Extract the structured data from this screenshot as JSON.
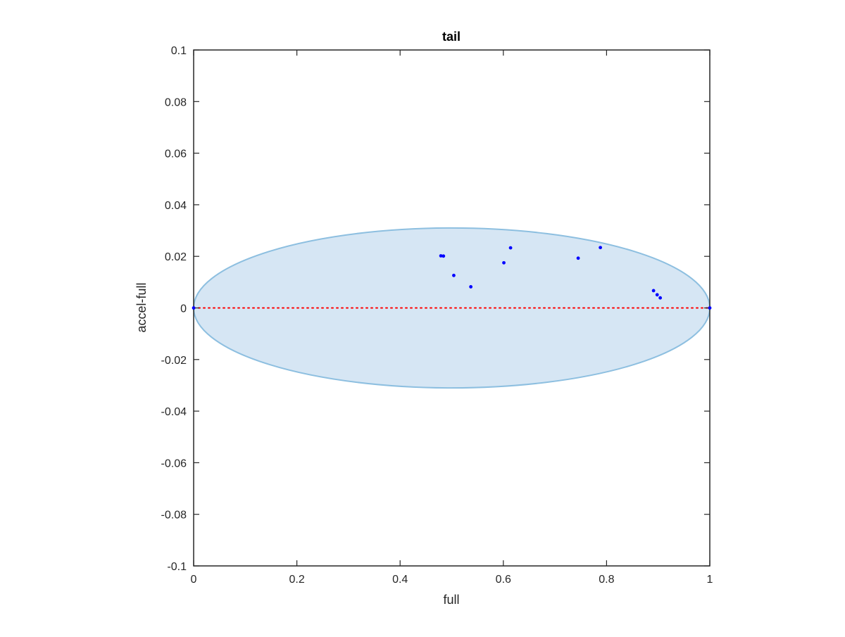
{
  "chart_data": {
    "type": "scatter",
    "title": "tail",
    "xlabel": "full",
    "ylabel": "accel-full",
    "xlim": [
      0,
      1
    ],
    "ylim": [
      -0.1,
      0.1
    ],
    "x_ticks": [
      0,
      0.2,
      0.4,
      0.6,
      0.8,
      1
    ],
    "x_tick_labels": [
      "0",
      "0.2",
      "0.4",
      "0.6",
      "0.8",
      "1"
    ],
    "y_ticks": [
      -0.1,
      -0.08,
      -0.06,
      -0.04,
      -0.02,
      0,
      0.02,
      0.04,
      0.06,
      0.08,
      0.1
    ],
    "y_tick_labels": [
      "-0.1",
      "-0.08",
      "-0.06",
      "-0.04",
      "-0.02",
      "0",
      "0.02",
      "0.04",
      "0.06",
      "0.08",
      "0.1"
    ],
    "grid": false,
    "box": true,
    "ellipse": {
      "center": [
        0.5,
        0
      ],
      "semi_axis_x": 0.5,
      "semi_axis_y": 0.031,
      "fill_color": "#d6e6f4",
      "edge_color": "#8dbfe0"
    },
    "reference_line": {
      "y": 0,
      "x_range": [
        0,
        1
      ],
      "style": "dotted",
      "color": "#ff0000"
    },
    "series": [
      {
        "color": "#0000ff",
        "marker": "dot",
        "points": [
          {
            "x": 0.0,
            "y": 0.0
          },
          {
            "x": 0.479,
            "y": 0.0202
          },
          {
            "x": 0.484,
            "y": 0.0201
          },
          {
            "x": 0.504,
            "y": 0.0126
          },
          {
            "x": 0.537,
            "y": 0.0082
          },
          {
            "x": 0.601,
            "y": 0.0175
          },
          {
            "x": 0.614,
            "y": 0.0233
          },
          {
            "x": 0.745,
            "y": 0.0193
          },
          {
            "x": 0.788,
            "y": 0.0234
          },
          {
            "x": 0.891,
            "y": 0.0067
          },
          {
            "x": 0.898,
            "y": 0.0051
          },
          {
            "x": 0.904,
            "y": 0.0039
          },
          {
            "x": 1.0,
            "y": 0.0
          }
        ]
      }
    ],
    "colors": {
      "axis": "#262626",
      "background": "#ffffff"
    }
  }
}
